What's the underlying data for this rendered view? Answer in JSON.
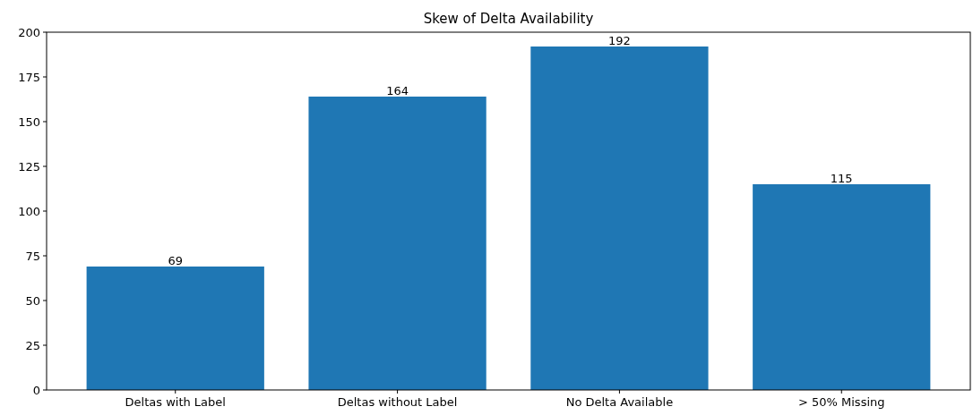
{
  "chart_data": {
    "type": "bar",
    "title": "Skew of Delta Availability",
    "categories": [
      "Deltas with Label",
      "Deltas without Label",
      "No Delta Available",
      "> 50% Missing"
    ],
    "values": [
      69,
      164,
      192,
      115
    ],
    "color": "#1f77b4",
    "ylim": [
      0,
      200
    ],
    "yticks": [
      0,
      25,
      50,
      75,
      100,
      125,
      150,
      175,
      200
    ],
    "data_labels": true
  }
}
